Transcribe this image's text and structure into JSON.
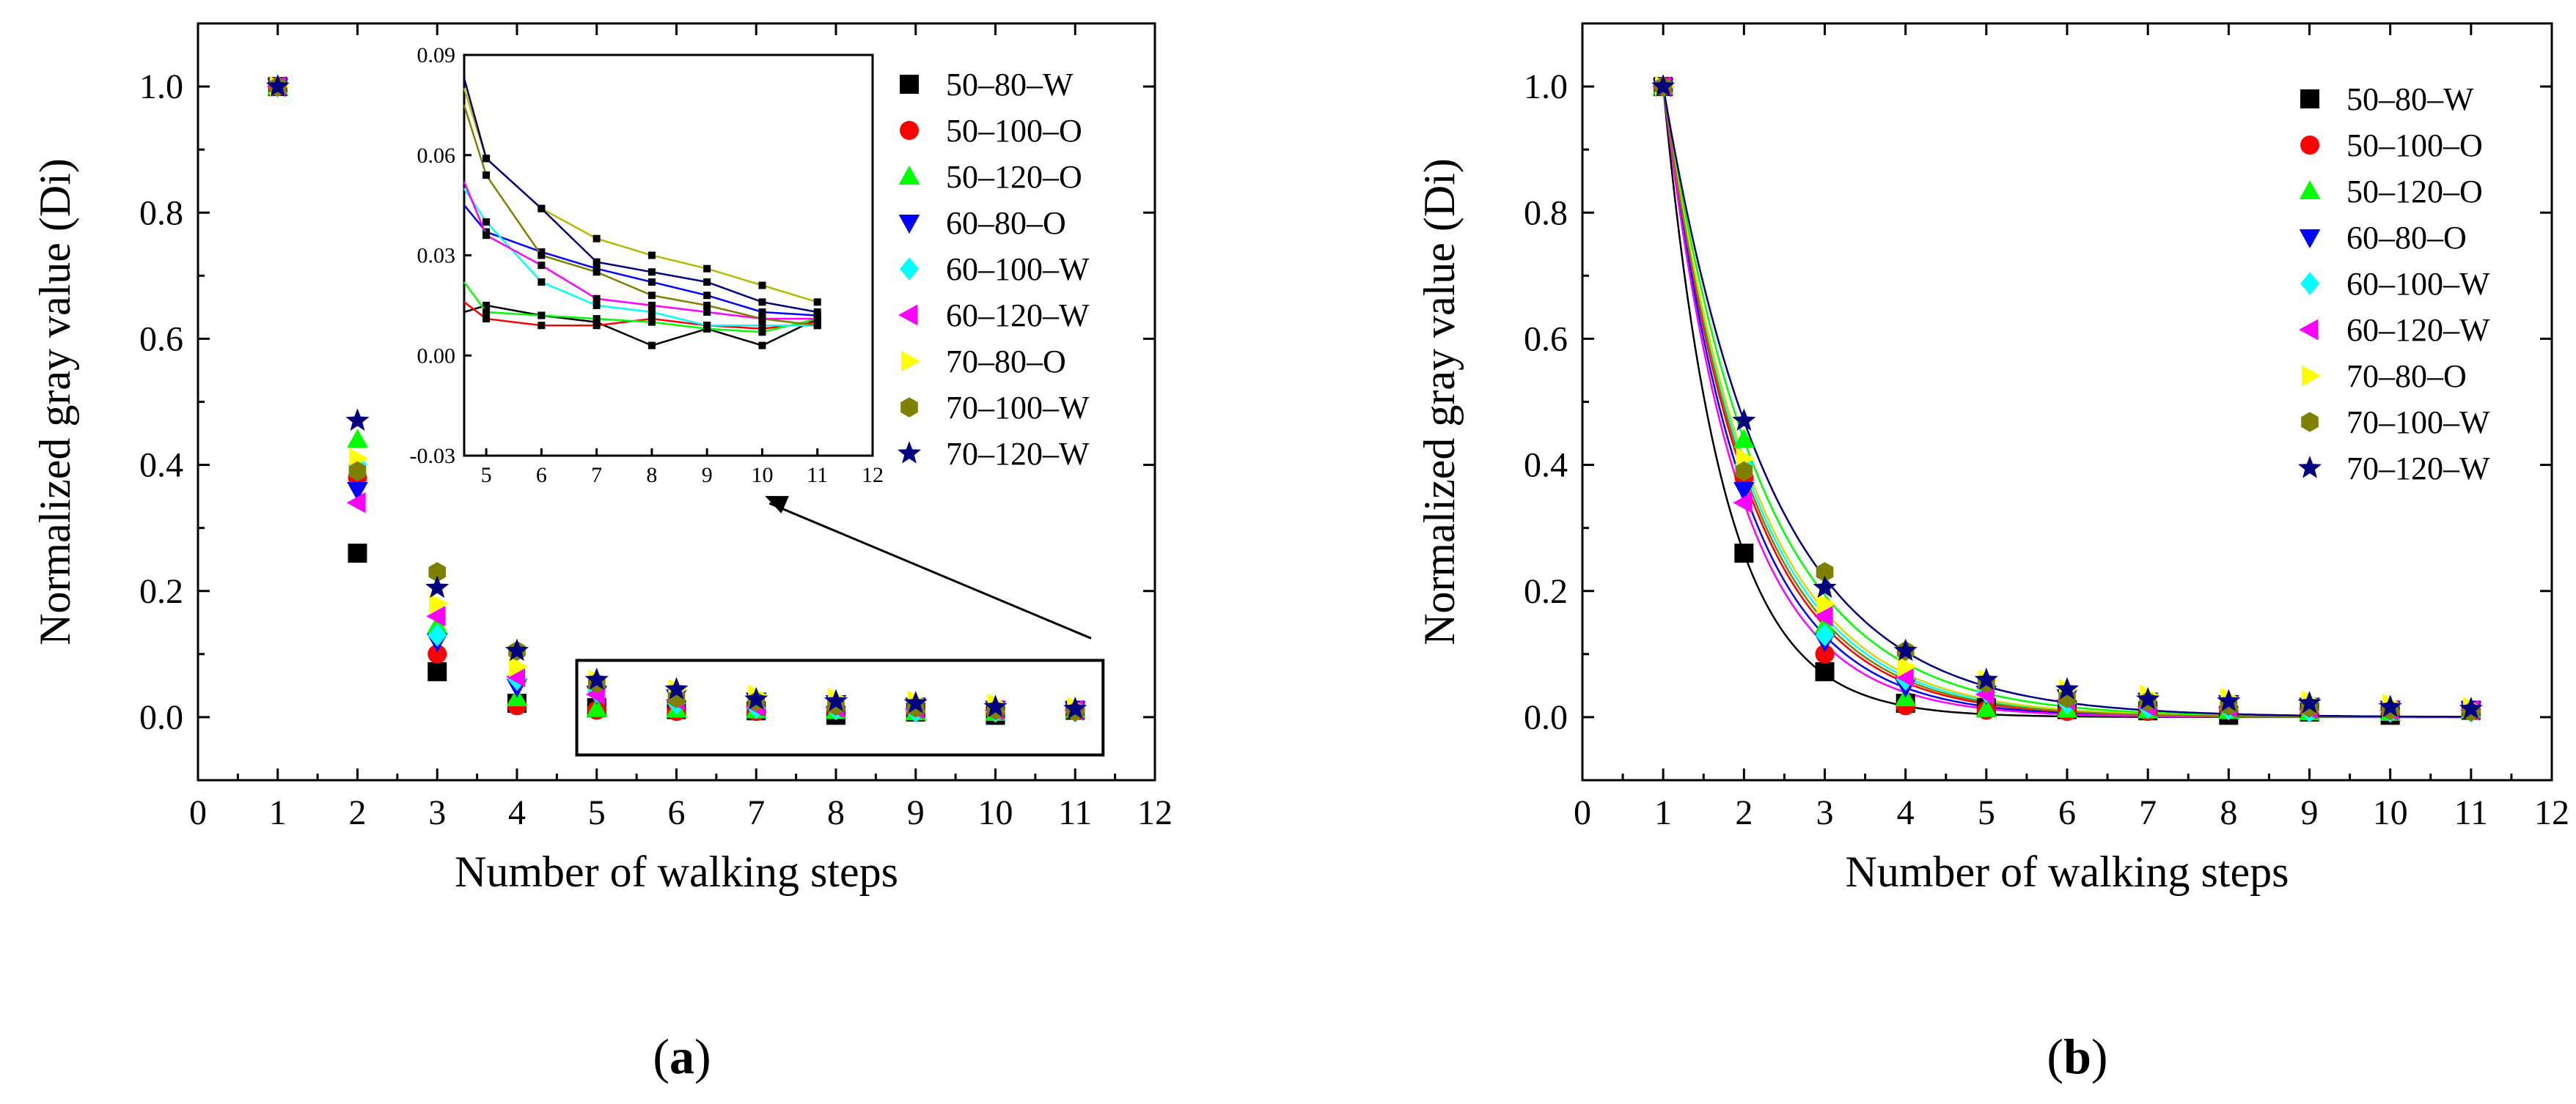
{
  "figure": {
    "panel_a_label": {
      "open": "(",
      "letter": "a",
      "close": ")"
    },
    "panel_b_label": {
      "open": "(",
      "letter": "b",
      "close": ")"
    }
  },
  "chart_data": [
    {
      "id": "a",
      "type": "scatter",
      "title": "",
      "xlabel": "Number of walking steps",
      "ylabel": "Normalized gray value (Di)",
      "xlim": [
        0,
        12
      ],
      "ylim": [
        -0.1,
        1.1
      ],
      "xticks": [
        0,
        1,
        2,
        3,
        4,
        5,
        6,
        7,
        8,
        9,
        10,
        11,
        12
      ],
      "yticks": [
        0.0,
        0.2,
        0.4,
        0.6,
        0.8,
        1.0
      ],
      "ytick_labels": [
        "0.0",
        "0.2",
        "0.4",
        "0.6",
        "0.8",
        "1.0"
      ],
      "legend_position": "top-right",
      "x": [
        1,
        2,
        3,
        4,
        5,
        6,
        7,
        8,
        9,
        10,
        11
      ],
      "series": [
        {
          "name": "50–80–W",
          "color": "#000000",
          "marker": "square",
          "values": [
            1.0,
            0.26,
            0.072,
            0.022,
            0.015,
            0.012,
            0.01,
            0.003,
            0.008,
            0.003,
            0.011
          ]
        },
        {
          "name": "50–100–O",
          "color": "#ff0000",
          "marker": "circle",
          "values": [
            1.0,
            0.38,
            0.1,
            0.018,
            0.011,
            0.009,
            0.009,
            0.011,
            0.009,
            0.008,
            0.01
          ]
        },
        {
          "name": "50–120–O",
          "color": "#00ff00",
          "marker": "triangle-up",
          "values": [
            1.0,
            0.44,
            0.145,
            0.03,
            0.013,
            0.012,
            0.011,
            0.01,
            0.008,
            0.007,
            0.011
          ]
        },
        {
          "name": "60–80–O",
          "color": "#0000ff",
          "marker": "triangle-down",
          "values": [
            1.0,
            0.36,
            0.12,
            0.048,
            0.037,
            0.031,
            0.026,
            0.022,
            0.018,
            0.013,
            0.012
          ]
        },
        {
          "name": "60–100–W",
          "color": "#00ffff",
          "marker": "diamond",
          "values": [
            1.0,
            0.4,
            0.13,
            0.06,
            0.04,
            0.022,
            0.015,
            0.013,
            0.009,
            0.009,
            0.009
          ]
        },
        {
          "name": "60–120–W",
          "color": "#ff00ff",
          "marker": "triangle-left",
          "values": [
            1.0,
            0.34,
            0.16,
            0.064,
            0.036,
            0.027,
            0.017,
            0.015,
            0.013,
            0.011,
            0.011
          ]
        },
        {
          "name": "70–80–O",
          "color": "#ffff00",
          "marker": "triangle-right",
          "values": [
            1.0,
            0.41,
            0.18,
            0.08,
            0.059,
            0.044,
            0.035,
            0.03,
            0.026,
            0.021,
            0.016
          ]
        },
        {
          "name": "70–100–W",
          "color": "#808000",
          "marker": "hexagon",
          "values": [
            1.0,
            0.39,
            0.23,
            0.105,
            0.054,
            0.03,
            0.025,
            0.018,
            0.015,
            0.011,
            0.009
          ]
        },
        {
          "name": "70–120–W",
          "color": "#000080",
          "marker": "star",
          "values": [
            1.0,
            0.47,
            0.205,
            0.105,
            0.059,
            0.044,
            0.028,
            0.025,
            0.022,
            0.016,
            0.013
          ]
        }
      ],
      "inset": {
        "xlim": [
          4.6,
          12
        ],
        "ylim": [
          -0.03,
          0.09
        ],
        "xticks": [
          5,
          6,
          7,
          8,
          9,
          10,
          11,
          12
        ],
        "yticks": [
          -0.03,
          0.0,
          0.03,
          0.06,
          0.09
        ],
        "ytick_labels": [
          "-0.03",
          "0.00",
          "0.03",
          "0.06",
          "0.09"
        ],
        "x_start": 4.6,
        "start_values": [
          0.013,
          0.016,
          0.022,
          0.045,
          0.05,
          0.052,
          0.08,
          0.075,
          0.083
        ],
        "x_range": [
          5,
          11
        ]
      }
    },
    {
      "id": "b",
      "type": "scatter",
      "title": "",
      "xlabel": "Number of walking steps",
      "ylabel": "Normalized gray value (Di)",
      "xlim": [
        0,
        12
      ],
      "ylim": [
        -0.1,
        1.1
      ],
      "xticks": [
        0,
        1,
        2,
        3,
        4,
        5,
        6,
        7,
        8,
        9,
        10,
        11,
        12
      ],
      "yticks": [
        0.0,
        0.2,
        0.4,
        0.6,
        0.8,
        1.0
      ],
      "ytick_labels": [
        "0.0",
        "0.2",
        "0.4",
        "0.6",
        "0.8",
        "1.0"
      ],
      "legend_position": "top-right",
      "fit": "exponential decay curve per series",
      "x": [
        1,
        2,
        3,
        4,
        5,
        6,
        7,
        8,
        9,
        10,
        11
      ],
      "series_ref": "a"
    }
  ]
}
